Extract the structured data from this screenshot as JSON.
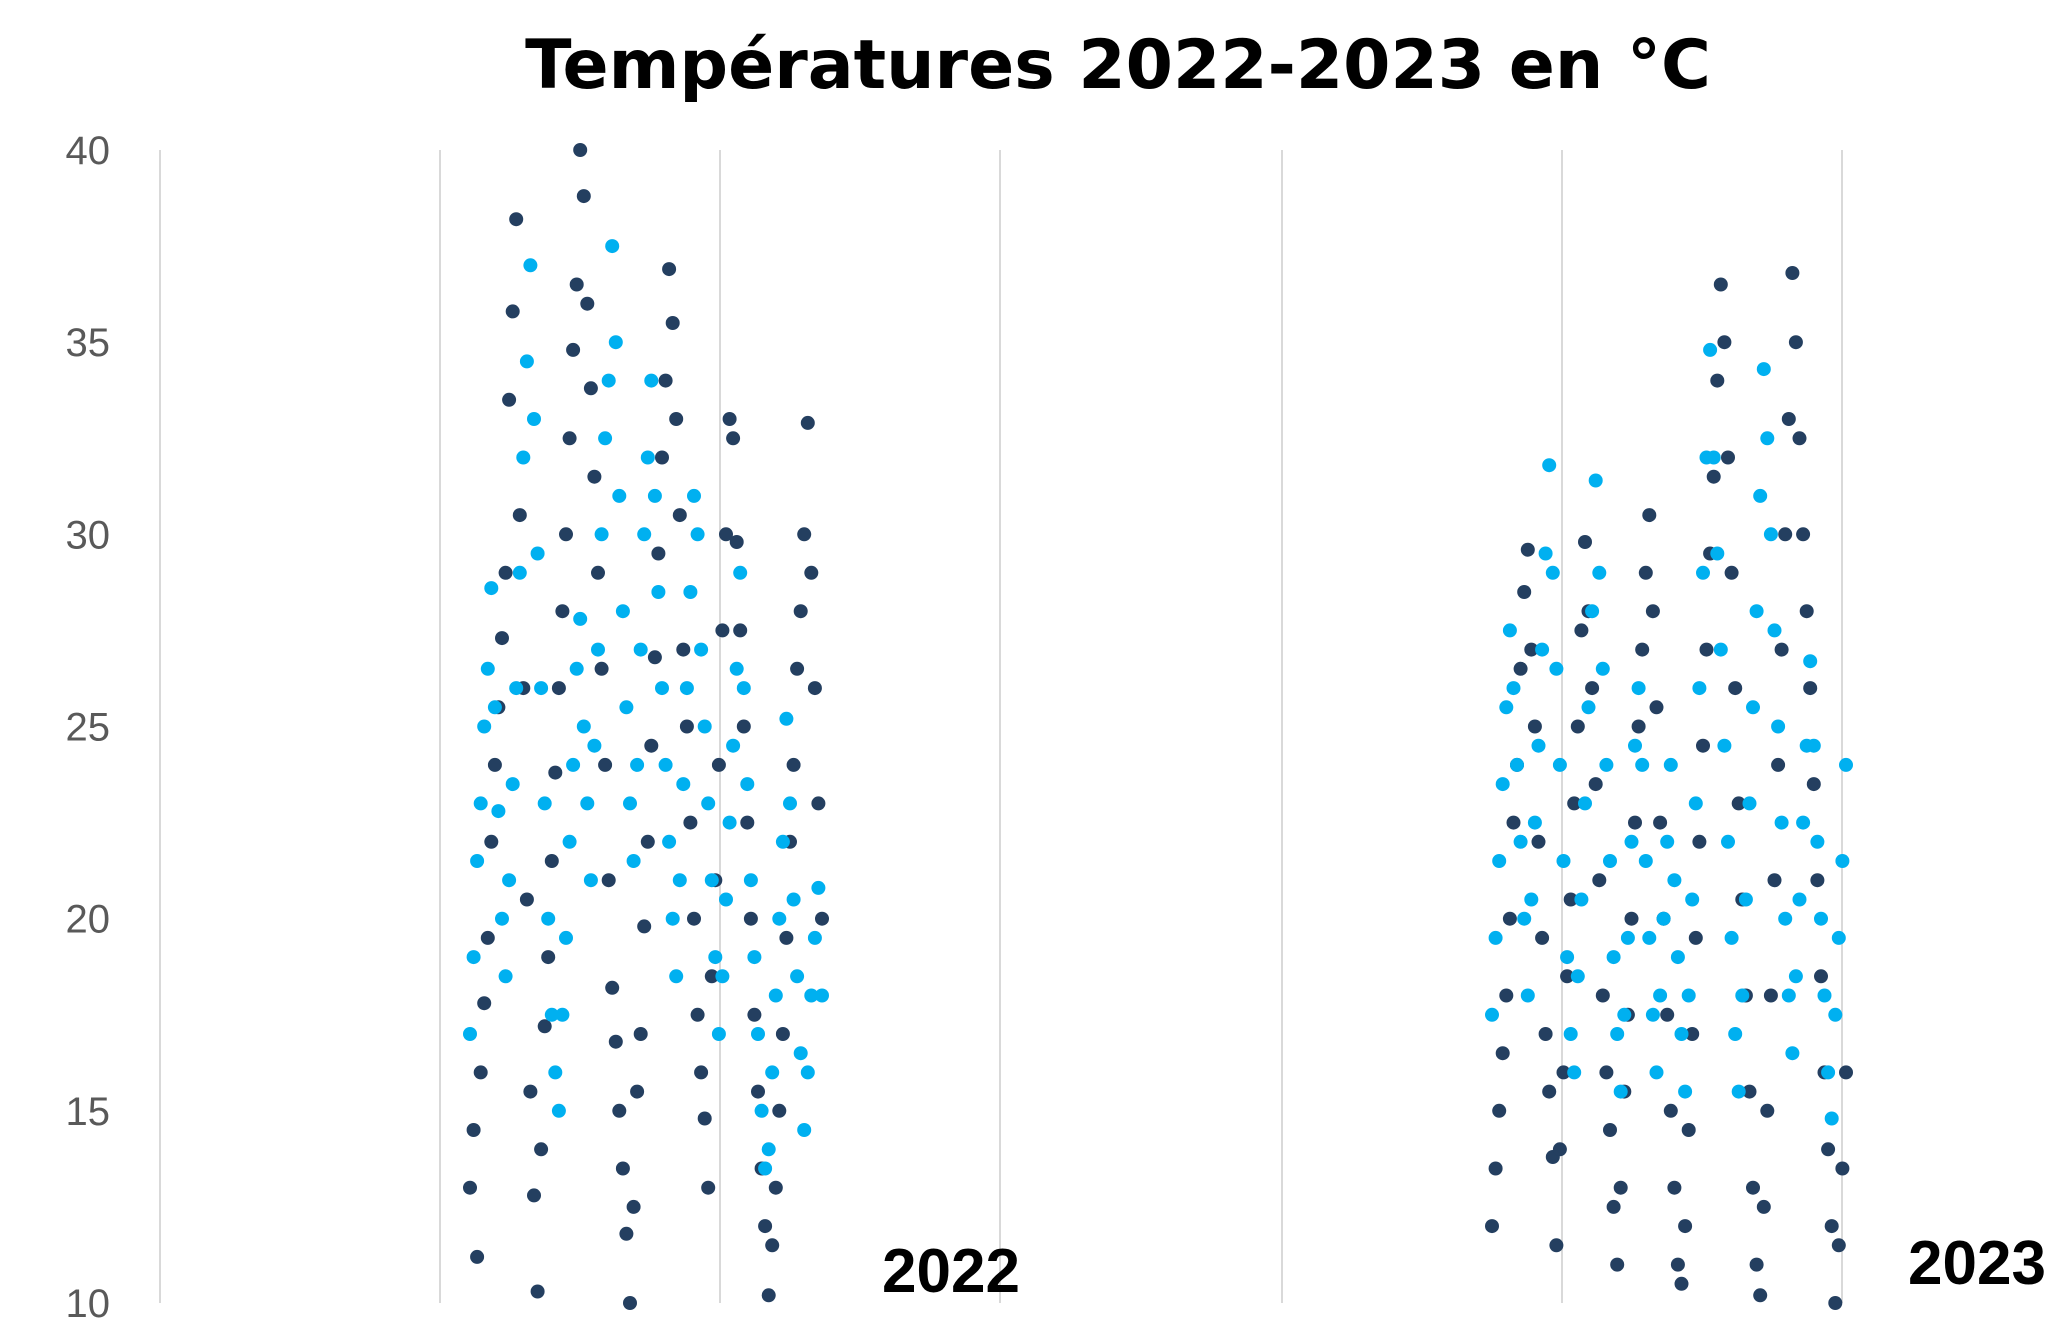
{
  "chart_data": {
    "type": "scatter",
    "title": "Températures 2022-2023 en °C",
    "ylim": [
      10,
      40
    ],
    "yticks": [
      "10",
      "15",
      "20",
      "25",
      "30",
      "35",
      "40"
    ],
    "grid": "vertical",
    "year_labels": [
      "2022",
      "2023"
    ],
    "colors": {
      "min_series": "#243f60",
      "max_series": "#00b0f0"
    },
    "series": [
      {
        "color": "#243f60",
        "clusters": [
          {
            "year": "2022",
            "values": [
              13.0,
              14.5,
              11.2,
              16.0,
              17.8,
              19.5,
              22.0,
              24.0,
              25.5,
              27.3,
              29.0,
              33.5,
              35.8,
              38.2,
              30.5,
              26.0,
              20.5,
              15.5,
              12.8,
              10.3,
              14.0,
              17.2,
              19.0,
              21.5,
              23.8,
              26.0,
              28.0,
              30.0,
              32.5,
              34.8,
              36.5,
              40.0,
              38.8,
              36.0,
              33.8,
              31.5,
              29.0,
              26.5,
              24.0,
              21.0,
              18.2,
              16.8,
              15.0,
              13.5,
              11.8,
              10.0,
              12.5,
              15.5,
              17.0,
              19.8,
              22.0,
              24.5,
              26.8,
              29.5,
              32.0,
              34.0,
              36.9,
              35.5,
              33.0,
              30.5,
              27.0,
              25.0,
              22.5,
              20.0,
              17.5,
              16.0,
              14.8,
              13.0,
              18.5,
              21.0,
              24.0,
              27.5,
              30.0,
              33.0,
              32.5,
              29.8,
              27.5,
              25.0,
              22.5,
              20.0,
              17.5,
              15.5,
              13.5,
              12.0,
              10.2,
              11.5,
              13.0,
              15.0,
              17.0,
              19.5,
              22.0,
              24.0,
              26.5,
              28.0,
              30.0,
              32.9,
              29.0,
              26.0,
              23.0,
              20.0
            ]
          },
          {
            "year": "2023",
            "values": [
              12.0,
              13.5,
              15.0,
              16.5,
              18.0,
              20.0,
              22.5,
              24.0,
              26.5,
              28.5,
              29.6,
              27.0,
              25.0,
              22.0,
              19.5,
              17.0,
              15.5,
              13.8,
              11.5,
              14.0,
              16.0,
              18.5,
              20.5,
              23.0,
              25.0,
              27.5,
              29.8,
              28.0,
              26.0,
              23.5,
              21.0,
              18.0,
              16.0,
              14.5,
              12.5,
              11.0,
              13.0,
              15.5,
              17.5,
              20.0,
              22.5,
              25.0,
              27.0,
              29.0,
              30.5,
              28.0,
              25.5,
              22.5,
              20.0,
              17.5,
              15.0,
              13.0,
              11.0,
              10.5,
              12.0,
              14.5,
              17.0,
              19.5,
              22.0,
              24.5,
              27.0,
              29.5,
              31.5,
              34.0,
              36.5,
              35.0,
              32.0,
              29.0,
              26.0,
              23.0,
              20.5,
              18.0,
              15.5,
              13.0,
              11.0,
              10.2,
              12.5,
              15.0,
              18.0,
              21.0,
              24.0,
              27.0,
              30.0,
              33.0,
              36.8,
              35.0,
              32.5,
              30.0,
              28.0,
              26.0,
              23.5,
              21.0,
              18.5,
              16.0,
              14.0,
              12.0,
              10.0,
              11.5,
              13.5,
              16.0
            ]
          }
        ]
      },
      {
        "color": "#00b0f0",
        "clusters": [
          {
            "year": "2022",
            "values": [
              17.0,
              19.0,
              21.5,
              23.0,
              25.0,
              26.5,
              28.6,
              25.5,
              22.8,
              20.0,
              18.5,
              21.0,
              23.5,
              26.0,
              29.0,
              32.0,
              34.5,
              37.0,
              33.0,
              29.5,
              26.0,
              23.0,
              20.0,
              17.5,
              16.0,
              15.0,
              17.5,
              19.5,
              22.0,
              24.0,
              26.5,
              27.8,
              25.0,
              23.0,
              21.0,
              24.5,
              27.0,
              30.0,
              32.5,
              34.0,
              37.5,
              35.0,
              31.0,
              28.0,
              25.5,
              23.0,
              21.5,
              24.0,
              27.0,
              30.0,
              32.0,
              34.0,
              31.0,
              28.5,
              26.0,
              24.0,
              22.0,
              20.0,
              18.5,
              21.0,
              23.5,
              26.0,
              28.5,
              31.0,
              30.0,
              27.0,
              25.0,
              23.0,
              21.0,
              19.0,
              17.0,
              18.5,
              20.5,
              22.5,
              24.5,
              26.5,
              29.0,
              26.0,
              23.5,
              21.0,
              19.0,
              17.0,
              15.0,
              13.5,
              14.0,
              16.0,
              18.0,
              20.0,
              22.0,
              25.2,
              23.0,
              20.5,
              18.5,
              16.5,
              14.5,
              16.0,
              18.0,
              19.5,
              20.8,
              18.0
            ]
          },
          {
            "year": "2023",
            "values": [
              17.5,
              19.5,
              21.5,
              23.5,
              25.5,
              27.5,
              26.0,
              24.0,
              22.0,
              20.0,
              18.0,
              20.5,
              22.5,
              24.5,
              27.0,
              29.5,
              31.8,
              29.0,
              26.5,
              24.0,
              21.5,
              19.0,
              17.0,
              16.0,
              18.5,
              20.5,
              23.0,
              25.5,
              28.0,
              31.4,
              29.0,
              26.5,
              24.0,
              21.5,
              19.0,
              17.0,
              15.5,
              17.5,
              19.5,
              22.0,
              24.5,
              26.0,
              24.0,
              21.5,
              19.5,
              17.5,
              16.0,
              18.0,
              20.0,
              22.0,
              24.0,
              21.0,
              19.0,
              17.0,
              15.5,
              18.0,
              20.5,
              23.0,
              26.0,
              29.0,
              32.0,
              34.8,
              32.0,
              29.5,
              27.0,
              24.5,
              22.0,
              19.5,
              17.0,
              15.5,
              18.0,
              20.5,
              23.0,
              25.5,
              28.0,
              31.0,
              34.3,
              32.5,
              30.0,
              27.5,
              25.0,
              22.5,
              20.0,
              18.0,
              16.5,
              18.5,
              20.5,
              22.5,
              24.5,
              26.7,
              24.5,
              22.0,
              20.0,
              18.0,
              16.0,
              14.8,
              17.5,
              19.5,
              21.5,
              24.0
            ]
          }
        ]
      }
    ]
  }
}
